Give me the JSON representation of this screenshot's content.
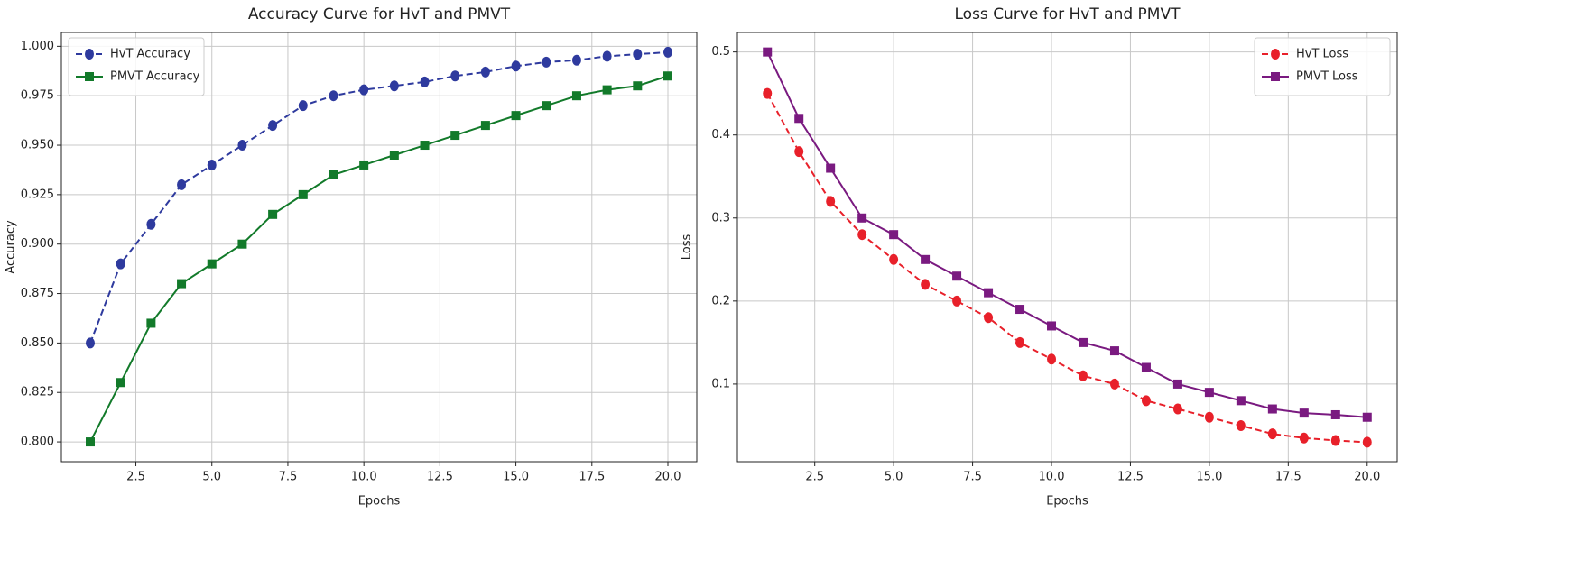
{
  "chart_data": [
    {
      "type": "line",
      "title": "Accuracy Curve for HvT and PMVT",
      "x_label": "Epochs",
      "y_label": "Accuracy",
      "x": [
        1,
        2,
        3,
        4,
        5,
        6,
        7,
        8,
        9,
        10,
        11,
        12,
        13,
        14,
        15,
        16,
        17,
        18,
        19,
        20
      ],
      "series": [
        {
          "name": "HvT Accuracy",
          "color": "#2e3a9e",
          "linestyle": "dashed",
          "marker": "circle",
          "values": [
            0.85,
            0.89,
            0.91,
            0.93,
            0.94,
            0.95,
            0.96,
            0.97,
            0.975,
            0.978,
            0.98,
            0.982,
            0.985,
            0.987,
            0.99,
            0.992,
            0.993,
            0.995,
            0.996,
            0.997
          ]
        },
        {
          "name": "PMVT Accuracy",
          "color": "#127a2a",
          "linestyle": "solid",
          "marker": "square",
          "values": [
            0.8,
            0.83,
            0.86,
            0.88,
            0.89,
            0.9,
            0.915,
            0.925,
            0.935,
            0.94,
            0.945,
            0.95,
            0.955,
            0.96,
            0.965,
            0.97,
            0.975,
            0.978,
            0.98,
            0.985
          ]
        }
      ],
      "xlim": [
        0.05,
        20.95
      ],
      "xticks": [
        2.5,
        {
          "value": 5,
          "label": "5.0"
        },
        7.5,
        {
          "value": 10,
          "label": "10.0"
        },
        12.5,
        {
          "value": 15,
          "label": "15.0"
        },
        17.5,
        {
          "value": 20,
          "label": "20.0"
        }
      ],
      "ylim": [
        0.79,
        1.007
      ],
      "yticks": [
        {
          "value": 0.8,
          "label": "0.800"
        },
        {
          "value": 0.825,
          "label": "0.825"
        },
        {
          "value": 0.85,
          "label": "0.850"
        },
        {
          "value": 0.875,
          "label": "0.875"
        },
        {
          "value": 0.9,
          "label": "0.900"
        },
        {
          "value": 0.925,
          "label": "0.925"
        },
        {
          "value": 0.95,
          "label": "0.950"
        },
        {
          "value": 0.975,
          "label": "0.975"
        },
        {
          "value": 1.0,
          "label": "1.000"
        }
      ],
      "grid": true,
      "legend": "upper-left"
    },
    {
      "type": "line",
      "title": "Loss Curve for HvT and PMVT",
      "x_label": "Epochs",
      "y_label": "Loss",
      "x": [
        1,
        2,
        3,
        4,
        5,
        6,
        7,
        8,
        9,
        10,
        11,
        12,
        13,
        14,
        15,
        16,
        17,
        18,
        19,
        20
      ],
      "series": [
        {
          "name": "HvT Loss",
          "color": "#e8202a",
          "linestyle": "dashed",
          "marker": "circle",
          "values": [
            0.45,
            0.38,
            0.32,
            0.28,
            0.25,
            0.22,
            0.2,
            0.18,
            0.15,
            0.13,
            0.11,
            0.1,
            0.08,
            0.07,
            0.06,
            0.05,
            0.04,
            0.035,
            0.032,
            0.03
          ]
        },
        {
          "name": "PMVT Loss",
          "color": "#7a1a80",
          "linestyle": "solid",
          "marker": "square",
          "values": [
            0.5,
            0.42,
            0.36,
            0.3,
            0.28,
            0.25,
            0.23,
            0.21,
            0.19,
            0.17,
            0.15,
            0.14,
            0.12,
            0.1,
            0.09,
            0.08,
            0.07,
            0.065,
            0.063,
            0.06
          ]
        }
      ],
      "xlim": [
        0.05,
        20.95
      ],
      "xticks": [
        2.5,
        {
          "value": 5,
          "label": "5.0"
        },
        7.5,
        {
          "value": 10,
          "label": "10.0"
        },
        12.5,
        {
          "value": 15,
          "label": "15.0"
        },
        17.5,
        {
          "value": 20,
          "label": "20.0"
        }
      ],
      "ylim": [
        0.0065,
        0.5235
      ],
      "yticks": [
        0.1,
        0.2,
        0.3,
        0.4,
        0.5
      ],
      "grid": true,
      "legend": "upper-right"
    }
  ]
}
